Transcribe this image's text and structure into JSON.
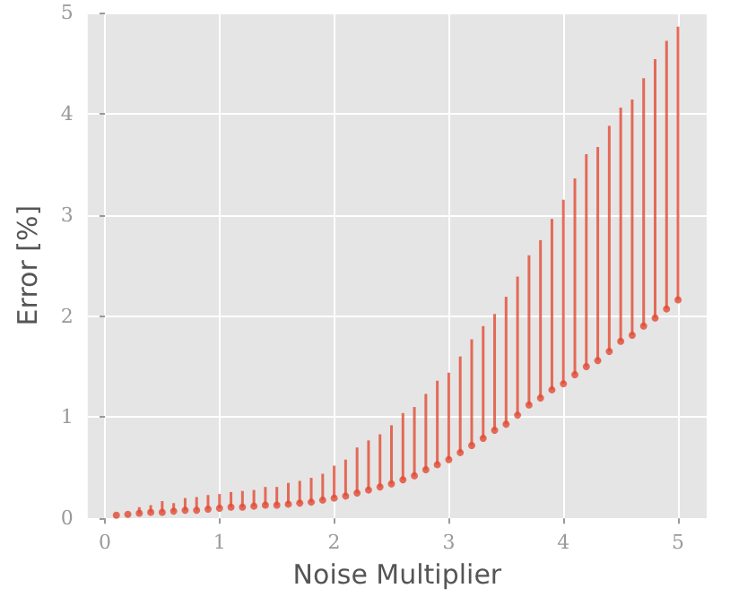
{
  "chart_data": {
    "type": "scatter",
    "xlabel": "Noise Multiplier",
    "ylabel": "Error [%]",
    "x": [
      0.1,
      0.2,
      0.3,
      0.4,
      0.5,
      0.6,
      0.7,
      0.8,
      0.9,
      1.0,
      1.1,
      1.2,
      1.3,
      1.4,
      1.5,
      1.6,
      1.7,
      1.8,
      1.9,
      2.0,
      2.1,
      2.2,
      2.3,
      2.4,
      2.5,
      2.6,
      2.7,
      2.8,
      2.9,
      3.0,
      3.1,
      3.2,
      3.3,
      3.4,
      3.5,
      3.6,
      3.7,
      3.8,
      3.9,
      4.0,
      4.1,
      4.2,
      4.3,
      4.4,
      4.5,
      4.6,
      4.7,
      4.8,
      4.9,
      5.0
    ],
    "series": [
      {
        "color": "#e24a33",
        "values": [
          0.03,
          0.04,
          0.05,
          0.06,
          0.06,
          0.07,
          0.08,
          0.08,
          0.09,
          0.1,
          0.11,
          0.11,
          0.12,
          0.13,
          0.13,
          0.14,
          0.15,
          0.16,
          0.18,
          0.2,
          0.22,
          0.25,
          0.28,
          0.31,
          0.34,
          0.38,
          0.42,
          0.48,
          0.53,
          0.58,
          0.65,
          0.72,
          0.79,
          0.87,
          0.93,
          1.02,
          1.12,
          1.19,
          1.27,
          1.33,
          1.42,
          1.5,
          1.56,
          1.65,
          1.75,
          1.81,
          1.9,
          1.98,
          2.07,
          2.16
        ],
        "errors": [
          null,
          null,
          [
            0.05,
            0.11
          ],
          [
            0.06,
            0.13
          ],
          [
            0.06,
            0.17
          ],
          [
            0.07,
            0.15
          ],
          [
            0.08,
            0.2
          ],
          [
            0.08,
            0.21
          ],
          [
            0.09,
            0.23
          ],
          [
            0.1,
            0.24
          ],
          [
            0.11,
            0.26
          ],
          [
            0.11,
            0.27
          ],
          [
            0.12,
            0.28
          ],
          [
            0.13,
            0.31
          ],
          [
            0.13,
            0.31
          ],
          [
            0.14,
            0.35
          ],
          [
            0.15,
            0.37
          ],
          [
            0.16,
            0.4
          ],
          [
            0.18,
            0.44
          ],
          [
            0.2,
            0.52
          ],
          [
            0.22,
            0.58
          ],
          [
            0.25,
            0.7
          ],
          [
            0.28,
            0.77
          ],
          [
            0.31,
            0.83
          ],
          [
            0.34,
            0.92
          ],
          [
            0.38,
            1.04
          ],
          [
            0.42,
            1.1
          ],
          [
            0.48,
            1.23
          ],
          [
            0.53,
            1.36
          ],
          [
            0.58,
            1.44
          ],
          [
            0.65,
            1.6
          ],
          [
            0.72,
            1.77
          ],
          [
            0.79,
            1.9
          ],
          [
            0.87,
            2.02
          ],
          [
            0.93,
            2.19
          ],
          [
            1.02,
            2.39
          ],
          [
            1.12,
            2.6
          ],
          [
            1.19,
            2.75
          ],
          [
            1.27,
            2.96
          ],
          [
            1.33,
            3.15
          ],
          [
            1.42,
            3.36
          ],
          [
            1.5,
            3.6
          ],
          [
            1.56,
            3.67
          ],
          [
            1.65,
            3.88
          ],
          [
            1.75,
            4.06
          ],
          [
            1.81,
            4.14
          ],
          [
            1.9,
            4.35
          ],
          [
            1.98,
            4.54
          ],
          [
            2.07,
            4.72
          ],
          [
            2.16,
            4.86
          ]
        ]
      }
    ],
    "xlim": [
      -0.15,
      5.25
    ],
    "xticks": [
      0,
      1,
      2,
      3,
      4,
      5
    ],
    "ylim": [
      0,
      5
    ],
    "yticks": [
      0,
      1,
      2,
      3,
      4,
      5
    ],
    "grid": true,
    "marker": "circle"
  }
}
